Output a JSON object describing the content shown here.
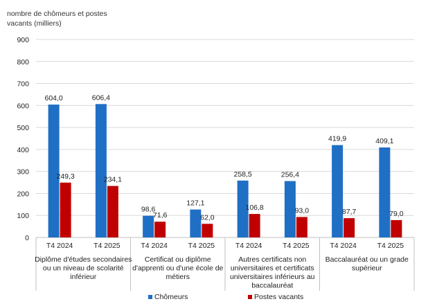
{
  "chart_data": {
    "type": "bar",
    "ylabel": "nombre de chômeurs et postes vacants (milliers)",
    "ylim": [
      0,
      900
    ],
    "yticks": [
      0,
      100,
      200,
      300,
      400,
      500,
      600,
      700,
      800,
      900
    ],
    "grid": true,
    "legend_position": "bottom",
    "groups": [
      {
        "label": "Diplôme d'études secondaires ou un niveau de scolarité inférieur",
        "label_lines": [
          "Diplôme d'études secondaires",
          "ou un niveau de scolarité",
          "inférieur"
        ]
      },
      {
        "label": "Certificat ou diplôme d'apprenti ou d'une école de métiers",
        "label_lines": [
          "Certificat ou diplôme",
          "d'apprenti ou d'une école de",
          "métiers"
        ]
      },
      {
        "label": "Autres certificats non universitaires et certificats universitaires inférieurs au baccalauréat",
        "label_lines": [
          "Autres certificats non",
          "universitaires et certificats",
          "universitaires inférieurs au",
          "baccalauréat"
        ]
      },
      {
        "label": "Baccalauréat ou un grade supérieur",
        "label_lines": [
          "Baccalauréat ou un grade",
          "supérieur"
        ]
      }
    ],
    "categories": [
      "T4 2024",
      "T4 2025",
      "T4 2024",
      "T4 2025",
      "T4 2024",
      "T4 2025",
      "T4 2024",
      "T4 2025"
    ],
    "series": [
      {
        "name": "Chômeurs",
        "color": "#1f6fc5",
        "values": [
          604.0,
          606.4,
          98.6,
          127.1,
          258.5,
          256.4,
          419.9,
          409.1
        ],
        "labels": [
          "604,0",
          "606,4",
          "98,6",
          "127,1",
          "258,5",
          "256,4",
          "419,9",
          "409,1"
        ]
      },
      {
        "name": "Postes vacants",
        "color": "#c00000",
        "values": [
          249.3,
          234.1,
          71.6,
          62.0,
          106.8,
          93.0,
          87.7,
          79.0
        ],
        "labels": [
          "249,3",
          "234,1",
          "71,6",
          "62,0",
          "106,8",
          "93,0",
          "87,7",
          "79,0"
        ]
      }
    ]
  }
}
